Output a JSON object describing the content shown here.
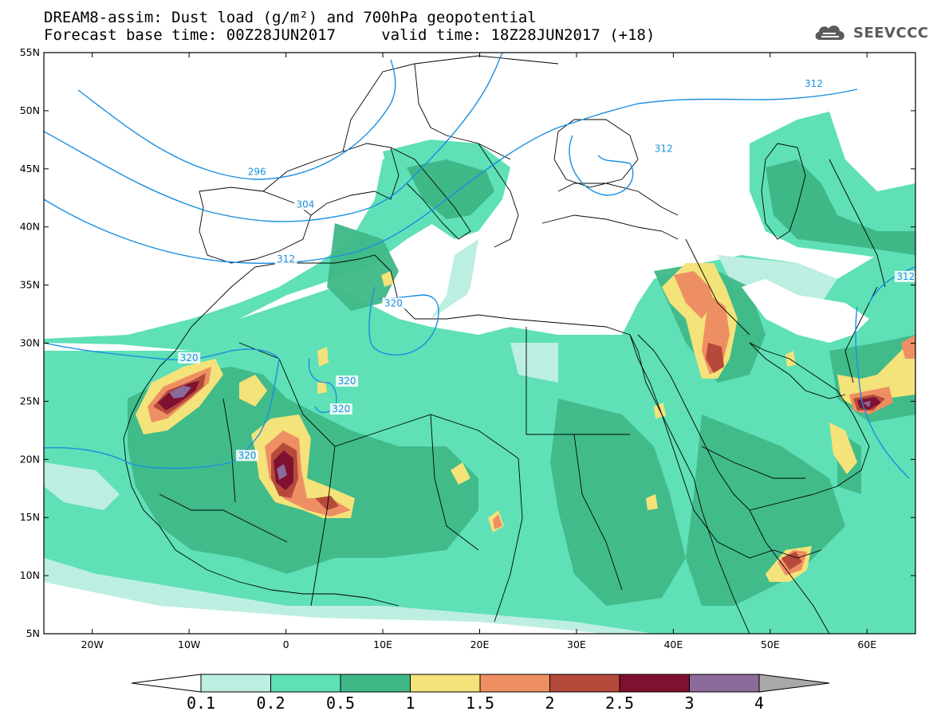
{
  "title": {
    "line1": "DREAM8-assim: Dust load (g/m²) and 700hPa geopotential",
    "line2": "Forecast base time: 00Z28JUN2017     valid time: 18Z28JUN2017 (+18)"
  },
  "logo": {
    "text": "SEEVCCC",
    "icon": "cloud-icon"
  },
  "map": {
    "lat_labels": [
      "55N",
      "50N",
      "45N",
      "40N",
      "35N",
      "30N",
      "25N",
      "20N",
      "15N",
      "10N",
      "5N"
    ],
    "lon_labels": [
      "20W",
      "10W",
      "0",
      "10E",
      "20E",
      "30E",
      "40E",
      "50E",
      "60E"
    ],
    "lon_range": [
      -25,
      65
    ],
    "lat_range": [
      5,
      55
    ],
    "contour_labels": [
      {
        "text": "296",
        "lon": -3,
        "lat": 44.6
      },
      {
        "text": "304",
        "lon": 2,
        "lat": 41.8
      },
      {
        "text": "312",
        "lon": 0,
        "lat": 37.1
      },
      {
        "text": "312",
        "lon": 54.5,
        "lat": 52.2
      },
      {
        "text": "312",
        "lon": 64,
        "lat": 35.6
      },
      {
        "text": "312",
        "lon": 39,
        "lat": 46.6
      },
      {
        "text": "320",
        "lon": 11.1,
        "lat": 33.3
      },
      {
        "text": "320",
        "lon": -10,
        "lat": 28.6
      },
      {
        "text": "320",
        "lon": 6.3,
        "lat": 26.6
      },
      {
        "text": "320",
        "lon": 5.7,
        "lat": 24.2
      },
      {
        "text": "320",
        "lon": -4,
        "lat": 20.2
      }
    ]
  },
  "colorbar": {
    "labels": [
      "0.1",
      "0.2",
      "0.5",
      "1",
      "1.5",
      "2",
      "2.5",
      "3",
      "4"
    ],
    "colors": [
      "#bdeee2",
      "#5fe0b7",
      "#3fb887",
      "#f4e27a",
      "#ee8f63",
      "#b54a3a",
      "#7f1030",
      "#8c6a9a"
    ],
    "under_color": "#ffffff",
    "over_color": "#a9a9a9"
  },
  "colors": {
    "contour": "#1a8fe0",
    "border": "#000000",
    "dust_low": "#bdeee2",
    "dust_mid": "#5fe0b7",
    "dust_high": "#3fb887"
  }
}
